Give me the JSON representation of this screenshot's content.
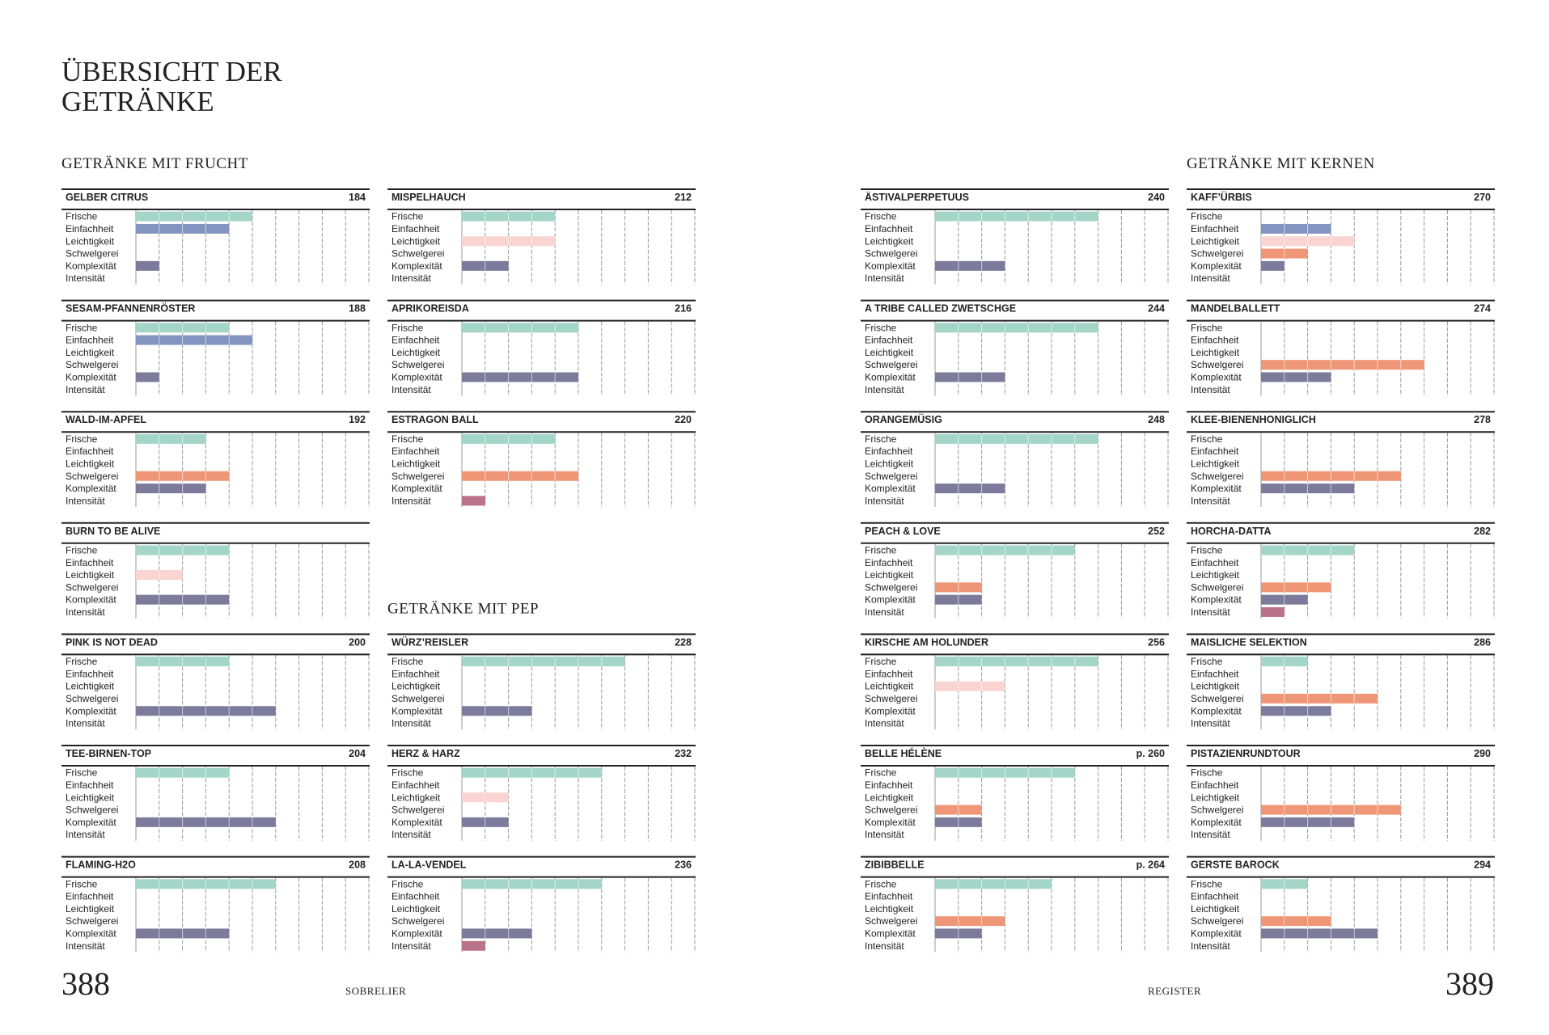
{
  "header": {
    "title_lines": [
      "ÜBERSICHT DER",
      "GETRÄNKE"
    ]
  },
  "attributes": [
    {
      "label": "Frische",
      "color": "#a3d6c7"
    },
    {
      "label": "Einfachheit",
      "color": "#8494c0"
    },
    {
      "label": "Leichtigkeit",
      "color": "#f9d4d1"
    },
    {
      "label": "Schwelgerei",
      "color": "#ef9677"
    },
    {
      "label": "Komplexität",
      "color": "#7c7b9b"
    },
    {
      "label": "Intensität",
      "color": "#b9728a"
    }
  ],
  "xlim": [
    0,
    10
  ],
  "xticks": [
    0,
    1,
    2,
    3,
    4,
    5,
    6,
    7,
    8,
    9,
    10
  ],
  "sections": [
    {
      "heading": "GETRÄNKE MIT FRUCHT",
      "drinks": [
        {
          "name": "GELBER CITRUS",
          "page": "184",
          "values": [
            5,
            4,
            0,
            0,
            1,
            0
          ]
        },
        {
          "name": "SESAM-PFANNENRÖSTER",
          "page": "188",
          "values": [
            4,
            5,
            0,
            0,
            1,
            0
          ]
        },
        {
          "name": "WALD-IM-APFEL",
          "page": "192",
          "values": [
            3,
            0,
            0,
            4,
            3,
            0
          ]
        },
        {
          "name": "BURN TO BE ALIVE",
          "values": [
            4,
            0,
            2,
            0,
            4,
            0
          ]
        },
        {
          "name": "PINK IS NOT DEAD",
          "page": "200",
          "values": [
            4,
            0,
            0,
            0,
            6,
            0
          ]
        },
        {
          "name": "TEE-BIRNEN-TOP",
          "page": "204",
          "values": [
            4,
            0,
            0,
            0,
            6,
            0
          ]
        },
        {
          "name": "FLAMING-H2O",
          "page": "208",
          "values": [
            6,
            0,
            0,
            0,
            4,
            0
          ]
        },
        {
          "name": "MISPELHAUCH",
          "page": "212",
          "values": [
            4,
            0,
            4,
            0,
            2,
            0
          ]
        },
        {
          "name": "APRIKOREISDA",
          "page": "216",
          "values": [
            5,
            0,
            0,
            0,
            5,
            0
          ]
        },
        {
          "name": "ESTRAGON BALL",
          "page": "220",
          "values": [
            4,
            0,
            0,
            5,
            0,
            1
          ]
        }
      ]
    },
    {
      "heading": "GETRÄNKE MIT PEP",
      "drinks": [
        {
          "name": "WÜRZ’REISLER",
          "page": "228",
          "values": [
            7,
            0,
            0,
            0,
            3,
            0
          ]
        },
        {
          "name": "HERZ & HARZ",
          "page": "232",
          "values": [
            6,
            0,
            2,
            0,
            2,
            0
          ]
        },
        {
          "name": "LA-LA-VENDEL",
          "page": "236",
          "values": [
            6,
            0,
            0,
            0,
            3,
            1
          ]
        },
        {
          "name": "ÄSTIVALPERPETUUS",
          "page": "240",
          "values": [
            7,
            0,
            0,
            0,
            3,
            0
          ]
        },
        {
          "name": "A TRIBE CALLED ZWETSCHGE",
          "page": "244",
          "values": [
            7,
            0,
            0,
            0,
            3,
            0
          ]
        },
        {
          "name": "ORANGEMÜSIG",
          "page": "248",
          "values": [
            7,
            0,
            0,
            0,
            3,
            0
          ]
        },
        {
          "name": "PEACH & LOVE",
          "page": "252",
          "values": [
            6,
            0,
            0,
            2,
            2,
            0
          ]
        },
        {
          "name": "KIRSCHE AM HOLUNDER",
          "page": "256",
          "values": [
            7,
            0,
            3,
            0,
            0,
            0
          ]
        },
        {
          "name": "BELLE HÉLÈNE",
          "page": "p. 260",
          "values": [
            6,
            0,
            0,
            2,
            2,
            0
          ]
        },
        {
          "name": "ZIBIBBELLE",
          "page": "p. 264",
          "values": [
            5,
            0,
            0,
            3,
            2,
            0
          ]
        }
      ]
    },
    {
      "heading": "GETRÄNKE MIT KERNEN",
      "drinks": [
        {
          "name": "KAFF’ÜRBIS",
          "page": "270",
          "values": [
            0,
            3,
            4,
            2,
            1,
            0
          ]
        },
        {
          "name": "MANDELBALLETT",
          "page": "274",
          "values": [
            0,
            0,
            0,
            7,
            3,
            0
          ]
        },
        {
          "name": "KLEE-BIENENHONIGLICH",
          "page": "278",
          "values": [
            0,
            0,
            0,
            6,
            4,
            0
          ]
        },
        {
          "name": "HORCHA-DATTA",
          "page": "282",
          "values": [
            4,
            0,
            0,
            3,
            2,
            1
          ]
        },
        {
          "name": "MAISLICHE SELEKTION",
          "page": "286",
          "values": [
            2,
            0,
            0,
            5,
            3,
            0
          ]
        },
        {
          "name": "PISTAZIENRUNDTOUR",
          "page": "290",
          "values": [
            0,
            0,
            0,
            6,
            4,
            0
          ]
        },
        {
          "name": "GERSTE BAROCK",
          "page": "294",
          "values": [
            2,
            0,
            0,
            3,
            5,
            0
          ]
        }
      ]
    }
  ],
  "footer": {
    "left_page": "388",
    "left_label": "SOBRELIER",
    "right_label": "REGISTER",
    "right_page": "389"
  }
}
